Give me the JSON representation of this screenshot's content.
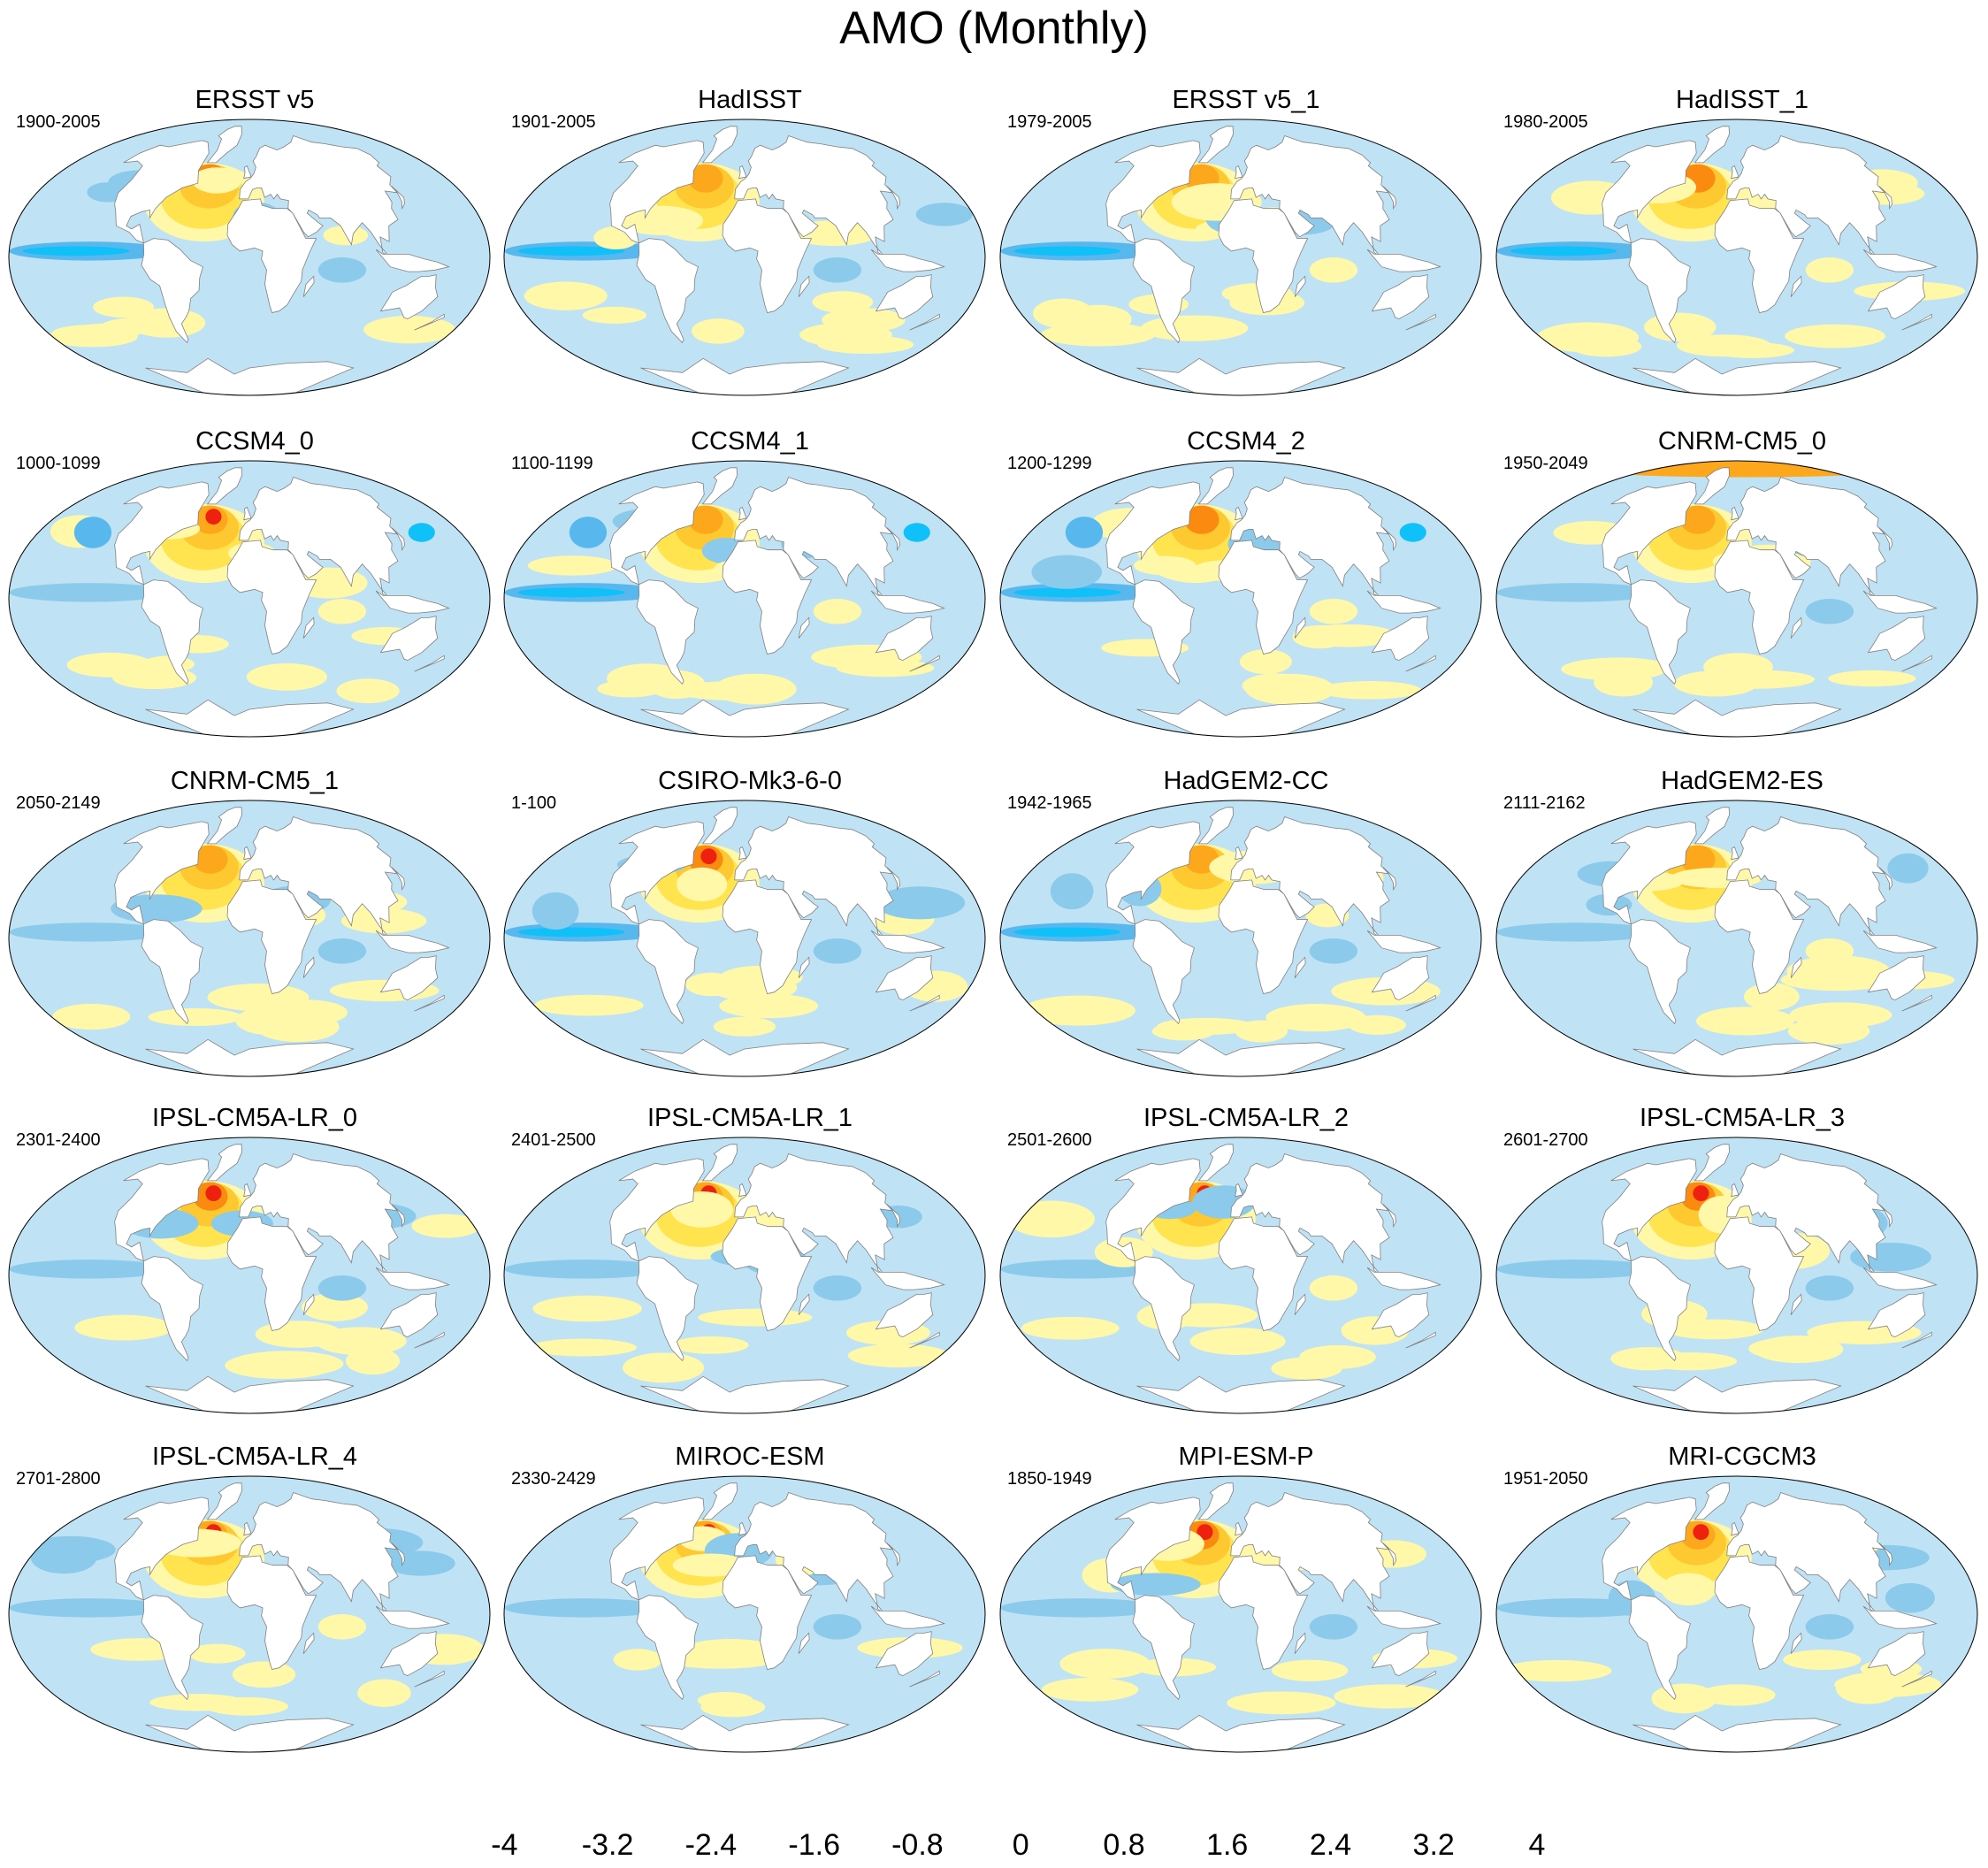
{
  "figure_title": "AMO (Monthly)",
  "panels": [
    {
      "title": "ERSST v5",
      "range": "1900-2005",
      "pattern": 0
    },
    {
      "title": "HadISST",
      "range": "1901-2005",
      "pattern": 1
    },
    {
      "title": "ERSST v5_1",
      "range": "1979-2005",
      "pattern": 2
    },
    {
      "title": "HadISST_1",
      "range": "1980-2005",
      "pattern": 3
    },
    {
      "title": "CCSM4_0",
      "range": "1000-1099",
      "pattern": 4
    },
    {
      "title": "CCSM4_1",
      "range": "1100-1199",
      "pattern": 5
    },
    {
      "title": "CCSM4_2",
      "range": "1200-1299",
      "pattern": 6
    },
    {
      "title": "CNRM-CM5_0",
      "range": "1950-2049",
      "pattern": 7
    },
    {
      "title": "CNRM-CM5_1",
      "range": "2050-2149",
      "pattern": 8
    },
    {
      "title": "CSIRO-Mk3-6-0",
      "range": "1-100",
      "pattern": 9
    },
    {
      "title": "HadGEM2-CC",
      "range": "1942-1965",
      "pattern": 10
    },
    {
      "title": "HadGEM2-ES",
      "range": "2111-2162",
      "pattern": 11
    },
    {
      "title": "IPSL-CM5A-LR_0",
      "range": "2301-2400",
      "pattern": 12
    },
    {
      "title": "IPSL-CM5A-LR_1",
      "range": "2401-2500",
      "pattern": 13
    },
    {
      "title": "IPSL-CM5A-LR_2",
      "range": "2501-2600",
      "pattern": 14
    },
    {
      "title": "IPSL-CM5A-LR_3",
      "range": "2601-2700",
      "pattern": 15
    },
    {
      "title": "IPSL-CM5A-LR_4",
      "range": "2701-2800",
      "pattern": 16
    },
    {
      "title": "MIROC-ESM",
      "range": "2330-2429",
      "pattern": 17
    },
    {
      "title": "MPI-ESM-P",
      "range": "1850-1949",
      "pattern": 18
    },
    {
      "title": "MRI-CGCM3",
      "range": "1951-2050",
      "pattern": 19
    }
  ],
  "colorbar": {
    "colors": [
      "#7f1fef",
      "#4010f4",
      "#1410f4",
      "#2e50e6",
      "#3d78e8",
      "#2c8cf0",
      "#10c0f8",
      "#58b8ee",
      "#8ccaec",
      "#bfe2f4",
      "#fff8a8",
      "#ffe450",
      "#fdc830",
      "#fda81c",
      "#fb8a10",
      "#f85810",
      "#ee2010",
      "#d60c0c",
      "#b20808",
      "#dc4848",
      "#f8b4b4"
    ],
    "tick_labels": [
      "-4",
      "-3.2",
      "-2.4",
      "-1.6",
      "-0.8",
      "0",
      "0.8",
      "1.6",
      "2.4",
      "3.2",
      "4"
    ],
    "tick_values": [
      -4,
      -3.2,
      -2.4,
      -1.6,
      -0.8,
      0,
      0.8,
      1.6,
      2.4,
      3.2,
      4
    ]
  },
  "colors": {
    "land": "#ffffff",
    "coast": "#808080"
  }
}
